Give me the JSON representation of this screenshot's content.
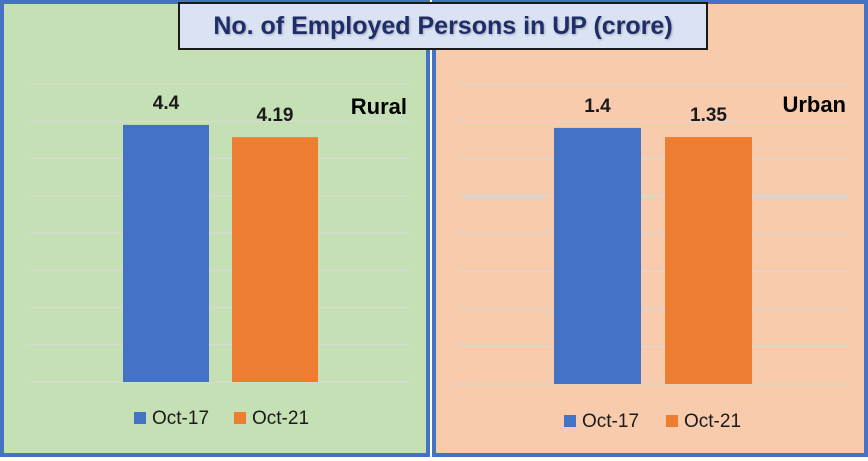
{
  "title": "No. of Employed Persons in UP (crore)",
  "colors": {
    "oct17": "#4472c4",
    "oct21": "#ed7d31",
    "rural_bg": "#c5e0b4",
    "urban_bg": "#f8cbad",
    "border": "#4472c4"
  },
  "legend": [
    "Oct-17",
    "Oct-21"
  ],
  "chart_data": [
    {
      "type": "bar",
      "title": "Rural",
      "categories": [
        "Oct-17",
        "Oct-21"
      ],
      "values": [
        4.4,
        4.19
      ],
      "data_labels": [
        "4.4",
        "4.19"
      ],
      "ylim": [
        0,
        5.1
      ],
      "grid": true,
      "legend_position": "bottom"
    },
    {
      "type": "bar",
      "title": "Urban",
      "categories": [
        "Oct-17",
        "Oct-21"
      ],
      "values": [
        1.4,
        1.35
      ],
      "data_labels": [
        "1.4",
        "1.35"
      ],
      "ylim": [
        0,
        1.64
      ],
      "grid": true,
      "legend_position": "bottom"
    }
  ]
}
